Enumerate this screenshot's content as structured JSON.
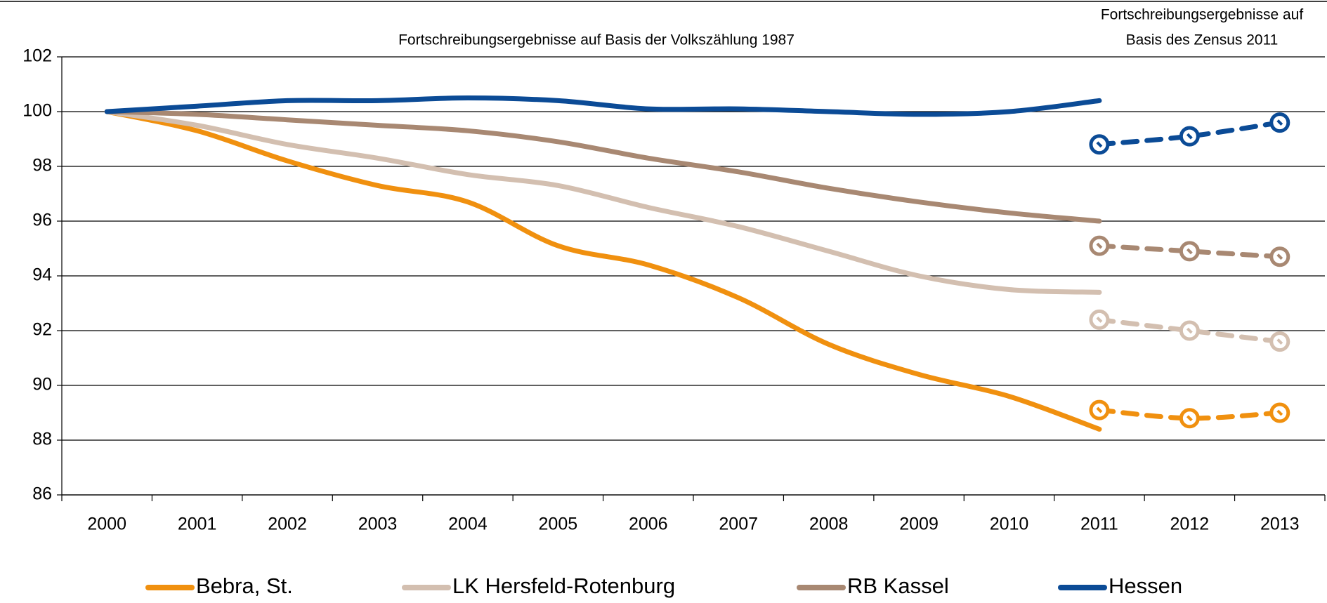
{
  "chart_data": {
    "type": "line",
    "annotation_left": "Fortschreibungsergebnisse auf Basis der Volkszählung 1987",
    "annotation_right": [
      "Fortschreibungsergebnisse auf",
      "Basis des Zensus 2011"
    ],
    "categories": [
      "2000",
      "2001",
      "2002",
      "2003",
      "2004",
      "2005",
      "2006",
      "2007",
      "2008",
      "2009",
      "2010",
      "2011",
      "2012",
      "2013"
    ],
    "series": [
      {
        "name": "Bebra, St.",
        "color": "#f0900f",
        "values": [
          100,
          99.3,
          98.2,
          97.3,
          96.7,
          95.1,
          94.4,
          93.2,
          91.5,
          90.4,
          89.6,
          88.4,
          null,
          null
        ],
        "values_zensus": [
          null,
          null,
          null,
          null,
          null,
          null,
          null,
          null,
          null,
          null,
          null,
          89.1,
          88.8,
          89.0
        ]
      },
      {
        "name": "LK Hersfeld-Rotenburg",
        "color": "#d3bfb0",
        "values": [
          100,
          99.5,
          98.8,
          98.3,
          97.7,
          97.3,
          96.5,
          95.8,
          94.9,
          94.0,
          93.5,
          93.4,
          null,
          null
        ],
        "values_zensus": [
          null,
          null,
          null,
          null,
          null,
          null,
          null,
          null,
          null,
          null,
          null,
          92.4,
          92.0,
          91.6
        ]
      },
      {
        "name": "RB Kassel",
        "color": "#a88872",
        "values": [
          100,
          99.9,
          99.7,
          99.5,
          99.3,
          98.9,
          98.3,
          97.8,
          97.2,
          96.7,
          96.3,
          96.0,
          null,
          null
        ],
        "values_zensus": [
          null,
          null,
          null,
          null,
          null,
          null,
          null,
          null,
          null,
          null,
          null,
          95.1,
          94.9,
          94.7
        ]
      },
      {
        "name": "Hessen",
        "color": "#0b4b96",
        "values": [
          100,
          100.2,
          100.4,
          100.4,
          100.5,
          100.4,
          100.1,
          100.1,
          100.0,
          99.9,
          100.0,
          100.4,
          null,
          null
        ],
        "values_zensus": [
          null,
          null,
          null,
          null,
          null,
          null,
          null,
          null,
          null,
          null,
          null,
          98.8,
          99.1,
          99.6
        ]
      }
    ],
    "ylim": [
      86,
      102
    ],
    "yticks": [
      86,
      88,
      90,
      92,
      94,
      96,
      98,
      100,
      102
    ],
    "grid": true,
    "legend": "bottom"
  }
}
